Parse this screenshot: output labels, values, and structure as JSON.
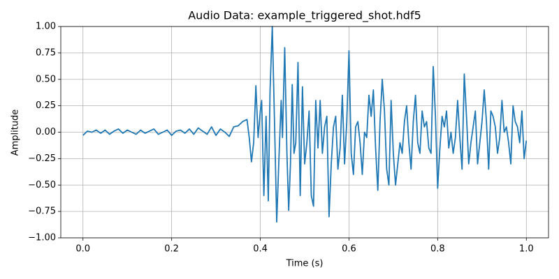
{
  "chart_data": {
    "type": "line",
    "title": "Audio Data: example_triggered_shot.hdf5",
    "x_label": "Time (s)",
    "y_label": "Amplitude",
    "x": [
      0,
      0.01,
      0.02,
      0.03,
      0.04,
      0.05,
      0.06,
      0.07,
      0.08,
      0.09,
      0.1,
      0.11,
      0.12,
      0.13,
      0.14,
      0.15,
      0.16,
      0.17,
      0.18,
      0.19,
      0.2,
      0.21,
      0.22,
      0.23,
      0.24,
      0.25,
      0.26,
      0.27,
      0.28,
      0.29,
      0.3,
      0.31,
      0.32,
      0.33,
      0.34,
      0.35,
      0.36,
      0.37,
      0.375,
      0.38,
      0.385,
      0.39,
      0.395,
      0.4,
      0.403,
      0.408,
      0.413,
      0.418,
      0.422,
      0.427,
      0.432,
      0.437,
      0.442,
      0.447,
      0.45,
      0.455,
      0.46,
      0.464,
      0.468,
      0.472,
      0.476,
      0.48,
      0.485,
      0.49,
      0.495,
      0.5,
      0.505,
      0.51,
      0.515,
      0.52,
      0.525,
      0.53,
      0.535,
      0.54,
      0.545,
      0.55,
      0.555,
      0.56,
      0.565,
      0.57,
      0.575,
      0.58,
      0.585,
      0.59,
      0.595,
      0.6,
      0.605,
      0.61,
      0.615,
      0.62,
      0.625,
      0.63,
      0.635,
      0.64,
      0.645,
      0.65,
      0.655,
      0.66,
      0.665,
      0.67,
      0.675,
      0.68,
      0.685,
      0.69,
      0.695,
      0.7,
      0.705,
      0.71,
      0.715,
      0.72,
      0.725,
      0.73,
      0.735,
      0.74,
      0.745,
      0.75,
      0.755,
      0.76,
      0.765,
      0.77,
      0.775,
      0.78,
      0.785,
      0.79,
      0.795,
      0.8,
      0.805,
      0.81,
      0.815,
      0.82,
      0.825,
      0.83,
      0.835,
      0.84,
      0.845,
      0.85,
      0.855,
      0.86,
      0.865,
      0.87,
      0.875,
      0.88,
      0.885,
      0.89,
      0.895,
      0.9,
      0.905,
      0.91,
      0.915,
      0.92,
      0.925,
      0.93,
      0.935,
      0.94,
      0.945,
      0.95,
      0.955,
      0.96,
      0.965,
      0.97,
      0.975,
      0.98,
      0.985,
      0.99,
      0.995,
      1
    ],
    "series": [
      {
        "color": "#1f77b4",
        "values": [
          -0.03,
          0.01,
          0,
          0.02,
          -0.01,
          0.02,
          -0.02,
          0.01,
          0.03,
          -0.01,
          0.02,
          0,
          -0.02,
          0.02,
          -0.01,
          0.01,
          0.03,
          -0.02,
          0,
          0.02,
          -0.03,
          0.01,
          0.02,
          -0.01,
          0.03,
          -0.02,
          0.04,
          0.01,
          -0.02,
          0.05,
          -0.03,
          0.03,
          0,
          -0.04,
          0.05,
          0.06,
          0.1,
          0.12,
          -0.05,
          -0.28,
          -0.1,
          0.44,
          -0.05,
          0.2,
          0.3,
          -0.6,
          0.15,
          -0.65,
          0.4,
          1.0,
          0.1,
          -0.85,
          -0.25,
          0.3,
          -0.05,
          0.8,
          -0.2,
          -0.74,
          -0.3,
          0.45,
          -0.2,
          -0.1,
          0.66,
          -0.6,
          0.43,
          -0.3,
          -0.1,
          0.2,
          -0.6,
          -0.7,
          0.3,
          -0.15,
          0.3,
          -0.2,
          0.05,
          0.15,
          -0.8,
          -0.3,
          0.05,
          0.15,
          -0.35,
          -0.15,
          0.35,
          -0.3,
          0.1,
          0.77,
          -0.2,
          -0.4,
          0.05,
          0.1,
          -0.1,
          -0.4,
          0,
          -0.05,
          0.35,
          0.15,
          0.4,
          -0.15,
          -0.55,
          0.1,
          0.5,
          0.2,
          -0.35,
          -0.5,
          0.3,
          -0.2,
          -0.5,
          -0.3,
          -0.1,
          -0.2,
          0.1,
          0.25,
          -0.1,
          -0.35,
          0.1,
          0.35,
          -0.1,
          -0.2,
          0.2,
          0.05,
          0.1,
          -0.15,
          -0.2,
          0.62,
          0.15,
          -0.53,
          -0.15,
          0.15,
          0.05,
          0.2,
          -0.15,
          0,
          -0.2,
          -0.05,
          0.3,
          -0.05,
          -0.35,
          0.55,
          0.15,
          -0.3,
          -0.1,
          0.05,
          0.2,
          -0.3,
          -0.1,
          0.1,
          0.4,
          0.1,
          -0.35,
          0.2,
          0.15,
          0.05,
          -0.2,
          -0.05,
          0.3,
          0,
          0.05,
          -0.1,
          -0.3,
          0.25,
          0.1,
          0.05,
          -0.1,
          0.2,
          -0.25,
          -0.08
        ]
      }
    ],
    "xlim": [
      -0.05,
      1.05
    ],
    "ylim": [
      -1,
      1
    ],
    "xticks": [
      {
        "value": 0,
        "label": "0.0"
      },
      {
        "value": 0.2,
        "label": "0.2"
      },
      {
        "value": 0.4,
        "label": "0.4"
      },
      {
        "value": 0.6,
        "label": "0.6"
      },
      {
        "value": 0.8,
        "label": "0.8"
      },
      {
        "value": 1,
        "label": "1.0"
      }
    ],
    "yticks": [
      {
        "value": -1,
        "label": "−1.00"
      },
      {
        "value": -0.75,
        "label": "−0.75"
      },
      {
        "value": -0.5,
        "label": "−0.50"
      },
      {
        "value": -0.25,
        "label": "−0.25"
      },
      {
        "value": 0,
        "label": "0.00"
      },
      {
        "value": 0.25,
        "label": "0.25"
      },
      {
        "value": 0.5,
        "label": "0.50"
      },
      {
        "value": 0.75,
        "label": "0.75"
      },
      {
        "value": 1,
        "label": "1.00"
      }
    ],
    "grid": true
  }
}
